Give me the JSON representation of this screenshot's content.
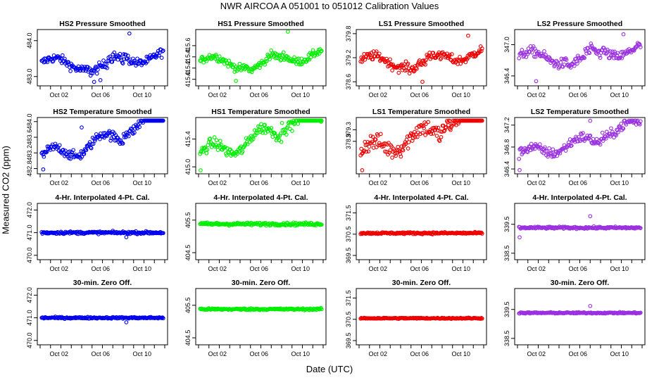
{
  "title": "NWR   AIRCOA A   051001 to 051012   Calibration Values",
  "xlabel": "Date (UTC)",
  "ylabel": "Measured CO2 (ppm)",
  "colors": {
    "HS2": "#0000ee",
    "HS1": "#00ee00",
    "LS1": "#ee0000",
    "LS2": "#9a30e0"
  },
  "chart_data": [
    {
      "type": "scatter",
      "title": "HS2 Pressure Smoothed",
      "series_key": "HS2",
      "ylim": [
        482.8,
        484.25
      ],
      "yticks": [
        "483.0",
        "484.0"
      ],
      "ytick_values": [
        483.0,
        484.0
      ],
      "xticks": [
        "Oct 02",
        "Oct 06",
        "Oct 10"
      ],
      "xlim": [
        0,
        12
      ],
      "pattern": "press",
      "base": 483.35,
      "amp": 0.28,
      "noise": 0.22,
      "outliers": [
        [
          8.6,
          484.2
        ],
        [
          5.2,
          482.85
        ],
        [
          5.8,
          482.9
        ]
      ]
    },
    {
      "type": "scatter",
      "title": "HS1 Pressure Smoothed",
      "series_key": "HS1",
      "ylim": [
        414.92,
        415.85
      ],
      "yticks": [
        "415.0",
        "415.2",
        "415.4",
        "415.6"
      ],
      "ytick_values": [
        415.0,
        415.2,
        415.4,
        415.6
      ],
      "xticks": [
        "Oct 02",
        "Oct 06",
        "Oct 10"
      ],
      "xlim": [
        0,
        12
      ],
      "pattern": "press",
      "base": 415.3,
      "amp": 0.18,
      "noise": 0.12,
      "outliers": [
        [
          8.6,
          415.85
        ],
        [
          3.6,
          414.97
        ]
      ]
    },
    {
      "type": "scatter",
      "title": "LS1 Pressure Smoothed",
      "series_key": "LS1",
      "ylim": [
        378.55,
        379.85
      ],
      "yticks": [
        "378.6",
        "379.2",
        "379.8"
      ],
      "ytick_values": [
        378.6,
        379.2,
        379.8
      ],
      "xticks": [
        "Oct 02",
        "Oct 06",
        "Oct 10"
      ],
      "xlim": [
        0,
        12
      ],
      "pattern": "press",
      "base": 379.1,
      "amp": 0.25,
      "noise": 0.2,
      "outliers": [
        [
          10.5,
          379.75
        ],
        [
          6.1,
          378.6
        ]
      ]
    },
    {
      "type": "scatter",
      "title": "LS2 Pressure Smoothed",
      "series_key": "LS2",
      "ylim": [
        346.25,
        347.25
      ],
      "yticks": [
        "346.4",
        "347.0"
      ],
      "ytick_values": [
        346.4,
        347.0
      ],
      "xticks": [
        "Oct 02",
        "Oct 06",
        "Oct 10"
      ],
      "xlim": [
        0,
        12
      ],
      "pattern": "press",
      "base": 346.75,
      "amp": 0.2,
      "noise": 0.17,
      "outliers": [
        [
          10.2,
          347.2
        ],
        [
          1.8,
          346.3
        ]
      ]
    },
    {
      "type": "scatter",
      "title": "HS2 Temperature Smoothed",
      "series_key": "HS2",
      "ylim": [
        482.72,
        484.05
      ],
      "yticks": [
        "482.8",
        "483.2",
        "483.6",
        "484.0"
      ],
      "ytick_values": [
        482.8,
        483.2,
        483.6,
        484.0
      ],
      "xticks": [
        "Oct 02",
        "Oct 06",
        "Oct 10"
      ],
      "xlim": [
        0,
        12
      ],
      "pattern": "temp",
      "base": 483.05,
      "amp": 0.55,
      "noise": 0.12,
      "outliers": [
        [
          4.0,
          483.85
        ],
        [
          0.3,
          482.78
        ]
      ]
    },
    {
      "type": "scatter",
      "title": "HS1 Temperature Smoothed",
      "series_key": "HS1",
      "ylim": [
        414.93,
        415.68
      ],
      "yticks": [
        "415.0",
        "415.4"
      ],
      "ytick_values": [
        415.0,
        415.4
      ],
      "xticks": [
        "Oct 02",
        "Oct 06",
        "Oct 10"
      ],
      "xlim": [
        0,
        12
      ],
      "pattern": "temp",
      "base": 415.15,
      "amp": 0.35,
      "noise": 0.08,
      "outliers": [
        [
          11.8,
          415.65
        ],
        [
          0.2,
          414.95
        ]
      ]
    },
    {
      "type": "scatter",
      "title": "LS1 Temperature Smoothed",
      "series_key": "LS1",
      "ylim": [
        377.85,
        379.65
      ],
      "yticks": [
        "378.9",
        "379.3"
      ],
      "ytick_values": [
        378.9,
        379.3
      ],
      "xticks": [
        "Oct 02",
        "Oct 06",
        "Oct 10"
      ],
      "xlim": [
        0,
        12
      ],
      "pattern": "temp",
      "base": 378.5,
      "amp": 0.75,
      "noise": 0.3,
      "outliers": [
        [
          8.8,
          379.6
        ],
        [
          0.3,
          377.9
        ]
      ]
    },
    {
      "type": "scatter",
      "title": "LS2 Temperature Smoothed",
      "series_key": "LS2",
      "ylim": [
        346.35,
        347.3
      ],
      "yticks": [
        "346.4",
        "346.8",
        "347.2"
      ],
      "ytick_values": [
        346.4,
        346.8,
        347.2
      ],
      "xticks": [
        "Oct 02",
        "Oct 06",
        "Oct 10"
      ],
      "xlim": [
        0,
        12
      ],
      "pattern": "temp",
      "base": 346.65,
      "amp": 0.28,
      "noise": 0.09,
      "outliers": [
        [
          7.0,
          347.28
        ],
        [
          0.2,
          346.38
        ]
      ]
    },
    {
      "type": "scatter",
      "title": "4-Hr. Interpolated 4-Pt. Cal.",
      "series_key": "HS2",
      "ylim": [
        469.9,
        472.2
      ],
      "yticks": [
        "470.0",
        "471.0",
        "472.0"
      ],
      "ytick_values": [
        470.0,
        471.0,
        472.0
      ],
      "xticks": [
        "Oct 02",
        "Oct 06",
        "Oct 10"
      ],
      "xlim": [
        0,
        12
      ],
      "pattern": "flat",
      "base": 471.0,
      "amp": 0,
      "noise": 0.12,
      "outliers": [
        [
          8.3,
          470.8
        ]
      ]
    },
    {
      "type": "scatter",
      "title": "4-Hr. Interpolated 4-Pt. Cal.",
      "series_key": "HS1",
      "ylim": [
        404.35,
        405.95
      ],
      "yticks": [
        "404.5",
        "405.5"
      ],
      "ytick_values": [
        404.5,
        405.5
      ],
      "xticks": [
        "Oct 02",
        "Oct 06",
        "Oct 10"
      ],
      "xlim": [
        0,
        12
      ],
      "pattern": "flat",
      "base": 405.38,
      "amp": 0,
      "noise": 0.1,
      "outliers": []
    },
    {
      "type": "scatter",
      "title": "4-Hr. Interpolated 4-Pt. Cal.",
      "series_key": "LS1",
      "ylim": [
        369.4,
        371.85
      ],
      "yticks": [
        "369.5",
        "370.5",
        "371.5"
      ],
      "ytick_values": [
        369.5,
        370.5,
        371.5
      ],
      "xticks": [
        "Oct 02",
        "Oct 06",
        "Oct 10"
      ],
      "xlim": [
        0,
        12
      ],
      "pattern": "flat",
      "base": 370.55,
      "amp": 0,
      "noise": 0.1,
      "outliers": []
    },
    {
      "type": "scatter",
      "title": "4-Hr. Interpolated 4-Pt. Cal.",
      "series_key": "LS2",
      "ylim": [
        338.35,
        340.15
      ],
      "yticks": [
        "338.5",
        "339.5"
      ],
      "ytick_values": [
        338.5,
        339.5
      ],
      "xticks": [
        "Oct 02",
        "Oct 06",
        "Oct 10"
      ],
      "xlim": [
        0,
        12
      ],
      "pattern": "flat",
      "base": 339.38,
      "amp": 0,
      "noise": 0.08,
      "outliers": [
        [
          7.0,
          339.78
        ],
        [
          0.2,
          339.05
        ]
      ]
    },
    {
      "type": "scatter",
      "title": "30-min. Zero Off.",
      "series_key": "HS2",
      "ylim": [
        469.9,
        472.2
      ],
      "yticks": [
        "470.0",
        "471.0",
        "472.0"
      ],
      "ytick_values": [
        470.0,
        471.0,
        472.0
      ],
      "xticks": [
        "Oct 02",
        "Oct 06",
        "Oct 10"
      ],
      "xlim": [
        0,
        12
      ],
      "pattern": "flat",
      "base": 471.0,
      "amp": 0,
      "noise": 0.08,
      "outliers": [
        [
          8.3,
          470.8
        ]
      ]
    },
    {
      "type": "scatter",
      "title": "30-min. Zero Off.",
      "series_key": "HS1",
      "ylim": [
        404.35,
        405.95
      ],
      "yticks": [
        "404.5",
        "405.5"
      ],
      "ytick_values": [
        404.5,
        405.5
      ],
      "xticks": [
        "Oct 02",
        "Oct 06",
        "Oct 10"
      ],
      "xlim": [
        0,
        12
      ],
      "pattern": "flat",
      "base": 405.38,
      "amp": 0,
      "noise": 0.06,
      "outliers": []
    },
    {
      "type": "scatter",
      "title": "30-min. Zero Off.",
      "series_key": "LS1",
      "ylim": [
        369.4,
        371.85
      ],
      "yticks": [
        "369.5",
        "370.5",
        "371.5"
      ],
      "ytick_values": [
        369.5,
        370.5,
        371.5
      ],
      "xticks": [
        "Oct 02",
        "Oct 06",
        "Oct 10"
      ],
      "xlim": [
        0,
        12
      ],
      "pattern": "flat",
      "base": 370.55,
      "amp": 0,
      "noise": 0.06,
      "outliers": []
    },
    {
      "type": "scatter",
      "title": "30-min. Zero Off.",
      "series_key": "LS2",
      "ylim": [
        338.35,
        340.15
      ],
      "yticks": [
        "338.5",
        "339.5"
      ],
      "ytick_values": [
        338.5,
        339.5
      ],
      "xticks": [
        "Oct 02",
        "Oct 06",
        "Oct 10"
      ],
      "xlim": [
        0,
        12
      ],
      "pattern": "flat",
      "base": 339.38,
      "amp": 0,
      "noise": 0.05,
      "outliers": [
        [
          7.0,
          339.62
        ]
      ]
    }
  ]
}
